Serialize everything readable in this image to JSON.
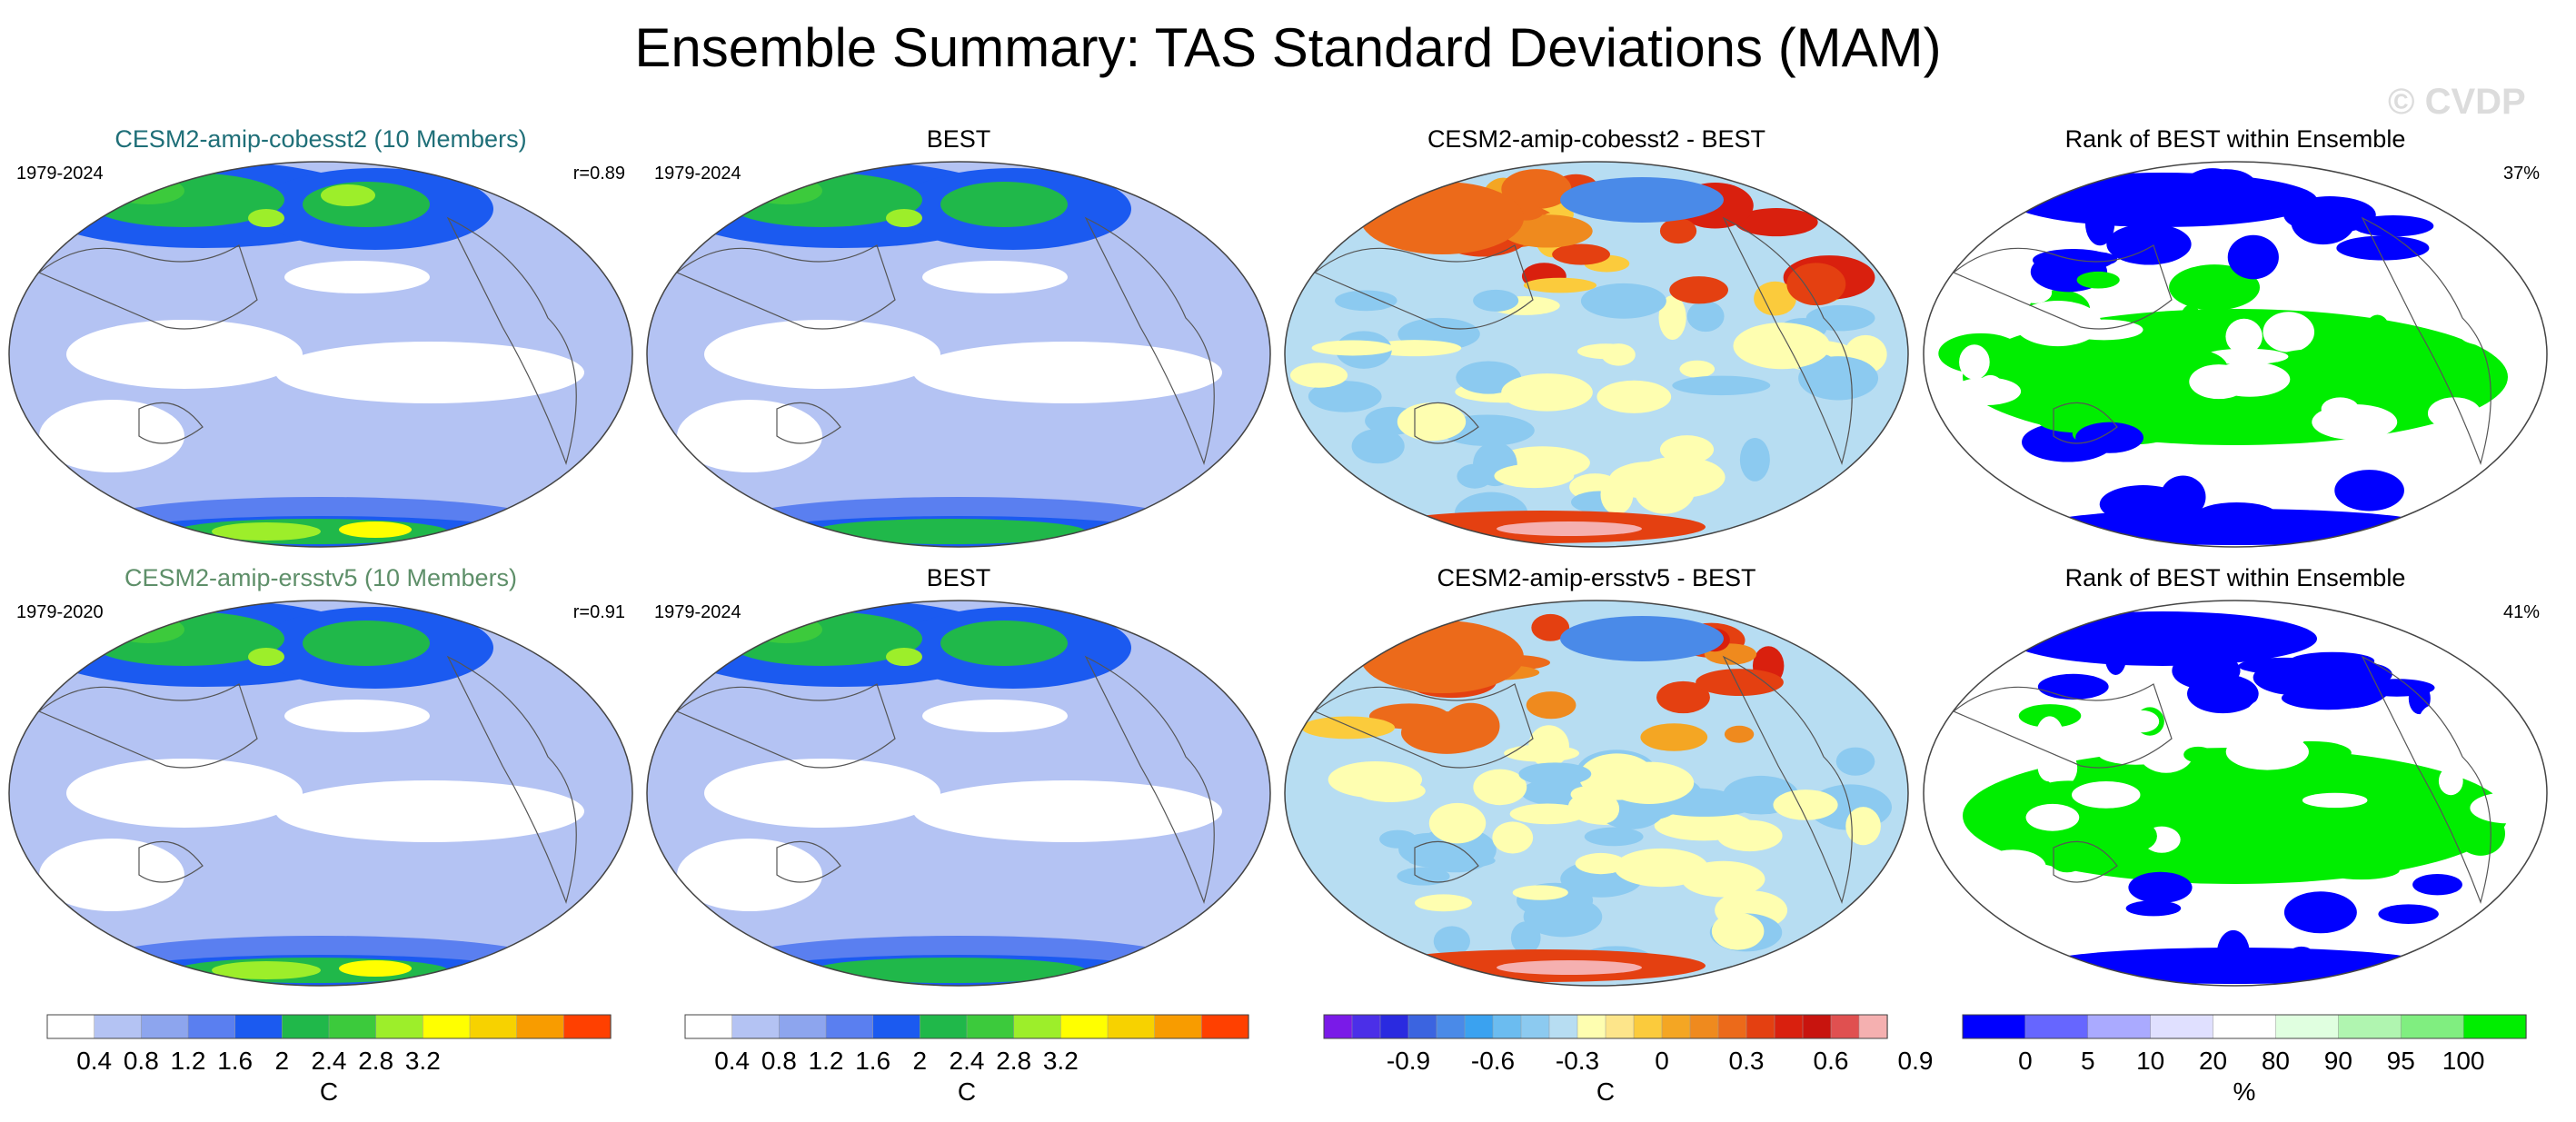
{
  "title": "Ensemble Summary: TAS Standard Deviations (MAM)",
  "watermark": "© CVDP",
  "colors": {
    "model_title_1": "#1f6f78",
    "model_title_2": "#5e8f69",
    "tas_sd_scale": [
      "#ffffff",
      "#b4c3f3",
      "#8da5ee",
      "#5a7ff0",
      "#1b5af0",
      "#20b84a",
      "#3cca3c",
      "#9dee2a",
      "#ffff00",
      "#f7d200",
      "#f89c00",
      "#ff4000"
    ],
    "diff_scale": [
      "#7a1ae8",
      "#4b2fe8",
      "#2a2ae0",
      "#3b64e0",
      "#4a8ae8",
      "#3aa2f0",
      "#6bbcf0",
      "#8ccaf0",
      "#b7ddf2",
      "#fefeb0",
      "#fde58a",
      "#fbcb3c",
      "#f4a623",
      "#ef8a1e",
      "#ec6a1a",
      "#e44011",
      "#d9200e",
      "#c8140e",
      "#e05050",
      "#f5b0b0"
    ],
    "rank_scale": [
      "#0000ff",
      "#6666ff",
      "#aaaaff",
      "#e0e0ff",
      "#ffffff",
      "#e0ffe0",
      "#b0f5b0",
      "#80ee80",
      "#00ee00"
    ]
  },
  "panels": [
    {
      "title": "CESM2-amip-cobesst2 (10 Members)",
      "years": "1979-2024",
      "stat": "r=0.89",
      "kind": "tas_sd",
      "title_color": "model_title_1"
    },
    {
      "title": "BEST",
      "years": "1979-2024",
      "stat": "",
      "kind": "tas_sd"
    },
    {
      "title": "CESM2-amip-cobesst2 - BEST",
      "years": "",
      "stat": "",
      "kind": "difference"
    },
    {
      "title": "Rank of BEST within Ensemble",
      "years": "",
      "stat": "37%",
      "kind": "rank"
    },
    {
      "title": "CESM2-amip-ersstv5 (10 Members)",
      "years": "1979-2020",
      "stat": "r=0.91",
      "kind": "tas_sd",
      "title_color": "model_title_2"
    },
    {
      "title": "BEST",
      "years": "1979-2024",
      "stat": "",
      "kind": "tas_sd"
    },
    {
      "title": "CESM2-amip-ersstv5 - BEST",
      "years": "",
      "stat": "",
      "kind": "difference"
    },
    {
      "title": "Rank of BEST within Ensemble",
      "years": "",
      "stat": "41%",
      "kind": "rank"
    }
  ],
  "chart_data": [
    {
      "type": "heatmap",
      "title": "CESM2-amip-cobesst2 (10 Members)",
      "variable": "TAS standard deviation",
      "units": "C",
      "period": "1979-2024",
      "pattern_correlation": 0.89
    },
    {
      "type": "heatmap",
      "title": "BEST",
      "variable": "TAS standard deviation",
      "units": "C",
      "period": "1979-2024"
    },
    {
      "type": "heatmap",
      "title": "CESM2-amip-cobesst2 - BEST",
      "units": "C"
    },
    {
      "type": "heatmap",
      "title": "Rank of BEST within Ensemble",
      "units": "%",
      "percent_shown": 37
    },
    {
      "type": "heatmap",
      "title": "CESM2-amip-ersstv5 (10 Members)",
      "variable": "TAS standard deviation",
      "units": "C",
      "period": "1979-2020",
      "pattern_correlation": 0.91
    },
    {
      "type": "heatmap",
      "title": "BEST",
      "variable": "TAS standard deviation",
      "units": "C",
      "period": "1979-2024"
    },
    {
      "type": "heatmap",
      "title": "CESM2-amip-ersstv5 - BEST",
      "units": "C"
    },
    {
      "type": "heatmap",
      "title": "Rank of BEST within Ensemble",
      "units": "%",
      "percent_shown": 41
    }
  ],
  "colorbars": [
    {
      "kind": "tas_sd",
      "units": "C",
      "tick_labels": [
        "0.4",
        "0.8",
        "1.2",
        "1.6",
        "2",
        "2.4",
        "2.8",
        "3.2"
      ]
    },
    {
      "kind": "tas_sd",
      "units": "C",
      "tick_labels": [
        "0.4",
        "0.8",
        "1.2",
        "1.6",
        "2",
        "2.4",
        "2.8",
        "3.2"
      ]
    },
    {
      "kind": "difference",
      "units": "C",
      "tick_labels": [
        "-0.9",
        "-0.6",
        "-0.3",
        "0",
        "0.3",
        "0.6",
        "0.9"
      ]
    },
    {
      "kind": "rank",
      "units": "%",
      "tick_labels": [
        "0",
        "5",
        "10",
        "20",
        "80",
        "90",
        "95",
        "100"
      ]
    }
  ]
}
